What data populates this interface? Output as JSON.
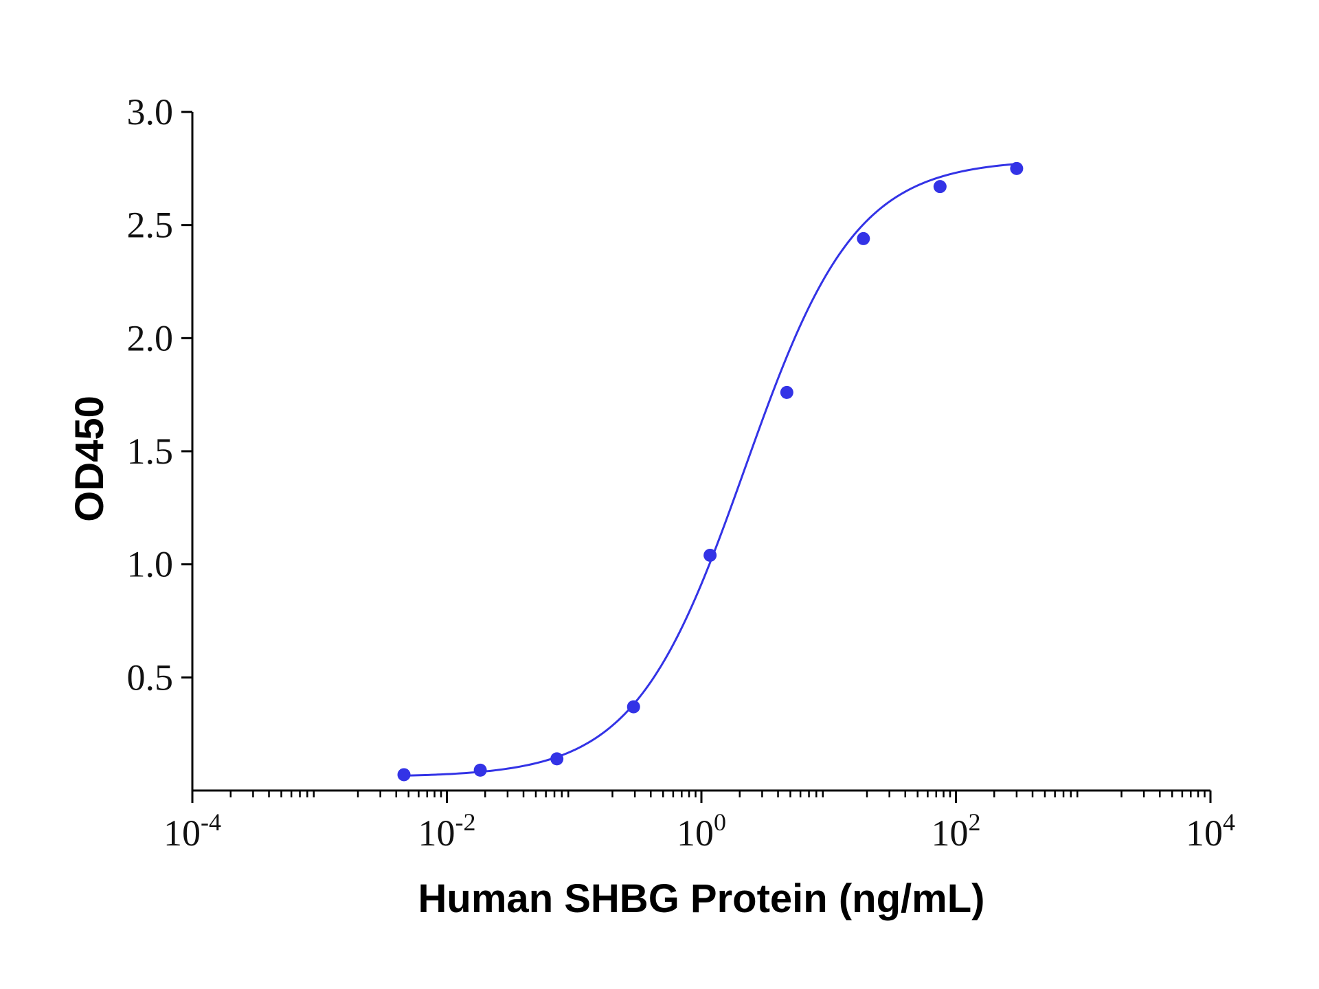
{
  "chart_data": {
    "type": "scatter",
    "title": "",
    "xlabel": "Human SHBG Protein (ng/mL)",
    "ylabel": "OD450",
    "xscale": "log",
    "xlim": [
      0.0001,
      10000
    ],
    "ylim": [
      0,
      3.0
    ],
    "grid": false,
    "x_ticks": [
      {
        "value": 0.0001,
        "base": "10",
        "exp": "-4"
      },
      {
        "value": 0.01,
        "base": "10",
        "exp": "-2"
      },
      {
        "value": 1,
        "base": "10",
        "exp": "0"
      },
      {
        "value": 100,
        "base": "10",
        "exp": "2"
      },
      {
        "value": 10000,
        "base": "10",
        "exp": "4"
      }
    ],
    "y_ticks": [
      {
        "value": 0.5,
        "label": "0.5"
      },
      {
        "value": 1.0,
        "label": "1.0"
      },
      {
        "value": 1.5,
        "label": "1.5"
      },
      {
        "value": 2.0,
        "label": "2.0"
      },
      {
        "value": 2.5,
        "label": "2.5"
      },
      {
        "value": 3.0,
        "label": "3.0"
      }
    ],
    "series": [
      {
        "color": "#3333e6",
        "points": [
          {
            "x": 0.0046,
            "y": 0.07
          },
          {
            "x": 0.0183,
            "y": 0.09
          },
          {
            "x": 0.0732,
            "y": 0.14
          },
          {
            "x": 0.293,
            "y": 0.37
          },
          {
            "x": 1.17,
            "y": 1.04
          },
          {
            "x": 4.69,
            "y": 1.76
          },
          {
            "x": 18.75,
            "y": 2.44
          },
          {
            "x": 75,
            "y": 2.67
          },
          {
            "x": 300,
            "y": 2.75
          }
        ],
        "fit": {
          "model": "4PL",
          "bottom": 0.06,
          "top": 2.79,
          "ec50": 2.2,
          "hill": 1.0
        }
      }
    ]
  }
}
